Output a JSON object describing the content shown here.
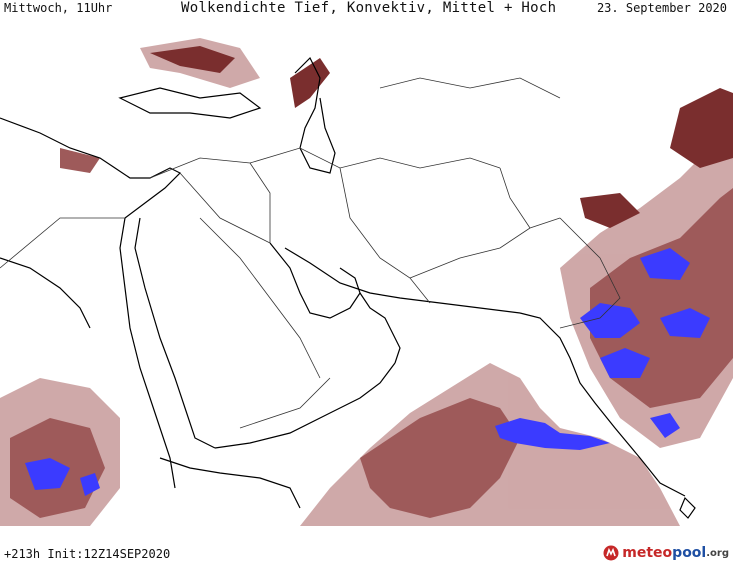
{
  "header": {
    "left": "Mittwoch, 11Uhr",
    "title": "Wolkendichte  Tief, Konvektiv, Mittel + Hoch",
    "date": "23. September 2020"
  },
  "footer": {
    "run": "+213h Init:12Z14SEP2020",
    "logo": {
      "part1": "meteo",
      "part2": "pool",
      "part3": ".org"
    }
  },
  "colors": {
    "cloud_dense": "#7a2e2e",
    "cloud_mid": "#9e5a5a",
    "cloud_light": "#c79a9a",
    "convective": "#3b3bff",
    "coastline": "#000000",
    "borders": "#333333"
  },
  "map": {
    "region": "Middle East / Arabian Peninsula / India",
    "overlay": "cloud density"
  }
}
